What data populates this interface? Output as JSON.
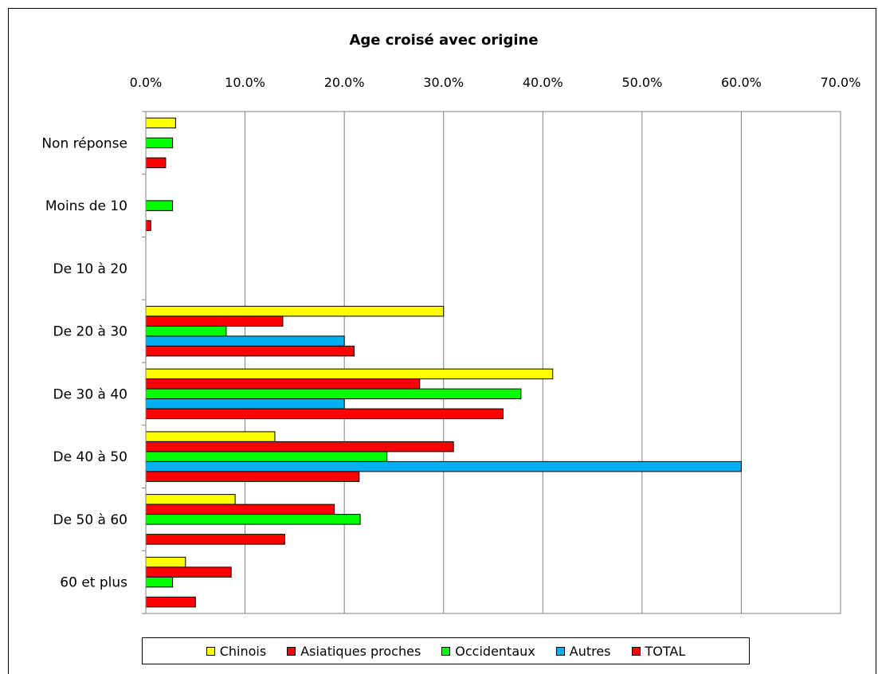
{
  "chart_data": {
    "type": "bar",
    "orientation": "horizontal",
    "title": "Age croisé avec origine",
    "xlim": [
      0,
      70
    ],
    "x_tick_values": [
      0,
      10,
      20,
      30,
      40,
      50,
      60,
      70
    ],
    "x_tick_labels": [
      "0.0%",
      "10.0%",
      "20.0%",
      "30.0%",
      "40.0%",
      "50.0%",
      "60.0%",
      "70.0%"
    ],
    "x_axis_position": "top",
    "grid": true,
    "legend_position": "bottom",
    "categories": [
      "Non réponse",
      "Moins de 10",
      "De 10 à 20",
      "De 20 à 30",
      "De 30 à 40",
      "De 40 à 50",
      "De 50 à 60",
      "60 et plus"
    ],
    "series": [
      {
        "name": "Chinois",
        "color": "#FFFF00",
        "values": [
          3.0,
          0,
          0,
          30.0,
          41.0,
          13.0,
          9.0,
          4.0
        ]
      },
      {
        "name": "Asiatiques proches",
        "color": "#FF0000",
        "values": [
          0,
          0,
          0,
          13.8,
          27.6,
          31.0,
          19.0,
          8.6
        ]
      },
      {
        "name": "Occidentaux",
        "color": "#00FF00",
        "values": [
          2.7,
          2.7,
          0,
          8.1,
          37.8,
          24.3,
          21.6,
          2.7
        ]
      },
      {
        "name": "Autres",
        "color": "#00B0F0",
        "values": [
          0,
          0,
          0,
          20.0,
          20.0,
          60.0,
          0,
          0
        ]
      },
      {
        "name": "TOTAL",
        "color": "#FF0000",
        "values": [
          2.0,
          0.5,
          0,
          21.0,
          36.0,
          21.5,
          14.0,
          5.0
        ]
      }
    ]
  }
}
